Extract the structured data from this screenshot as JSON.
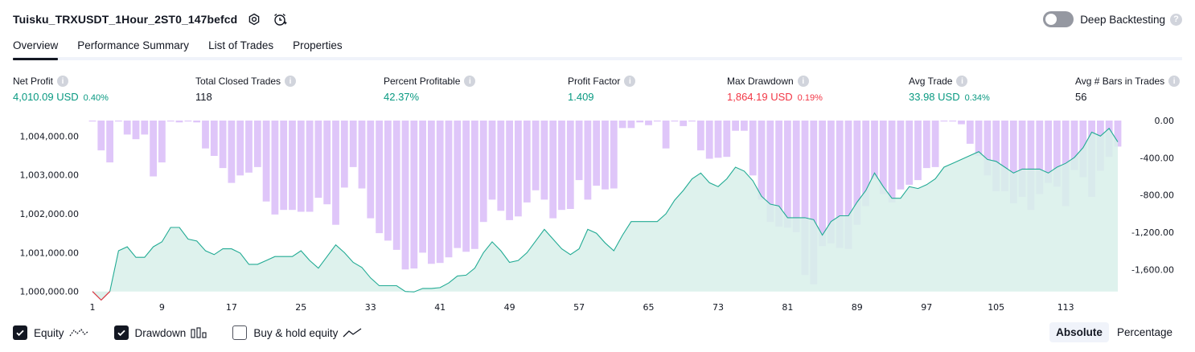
{
  "header": {
    "title": "Tuisku_TRXUSDT_1Hour_2ST0_147befcd"
  },
  "deep_backtesting": {
    "label": "Deep Backtesting",
    "enabled": false
  },
  "tabs": [
    {
      "label": "Overview",
      "active": true
    },
    {
      "label": "Performance Summary",
      "active": false
    },
    {
      "label": "List of Trades",
      "active": false
    },
    {
      "label": "Properties",
      "active": false
    }
  ],
  "metrics": {
    "net_profit": {
      "label": "Net Profit",
      "value": "4,010.09 USD",
      "pct": "0.40%"
    },
    "total_closed_trades": {
      "label": "Total Closed Trades",
      "value": "118"
    },
    "percent_profitable": {
      "label": "Percent Profitable",
      "value": "42.37%"
    },
    "profit_factor": {
      "label": "Profit Factor",
      "value": "1.409"
    },
    "max_drawdown": {
      "label": "Max Drawdown",
      "value": "1,864.19 USD",
      "pct": "0.19%"
    },
    "avg_trade": {
      "label": "Avg Trade",
      "value": "33.98 USD",
      "pct": "0.34%"
    },
    "avg_bars": {
      "label": "Avg # Bars in Trades",
      "value": "56"
    }
  },
  "legend": {
    "equity": {
      "label": "Equity",
      "checked": true
    },
    "drawdown": {
      "label": "Drawdown",
      "checked": true
    },
    "buy_hold": {
      "label": "Buy & hold equity",
      "checked": false
    }
  },
  "mode": {
    "absolute": "Absolute",
    "percentage": "Percentage",
    "selected": "Absolute"
  },
  "colors": {
    "equity_line": "#22ab94",
    "equity_fill": "#d8f0ea",
    "drawdown_bar": "#d7b8f7",
    "negative_line": "#f23645",
    "positive": "#089981",
    "negative": "#f23645"
  },
  "chart_data": {
    "type": "area",
    "x_ticks": [
      "1",
      "9",
      "17",
      "25",
      "33",
      "41",
      "49",
      "57",
      "65",
      "73",
      "81",
      "89",
      "97",
      "105",
      "113"
    ],
    "left_axis": {
      "ticks": [
        "1,004,000.00",
        "1,003,000.00",
        "1,002,000.00",
        "1,001,000.00",
        "1,000,000.00"
      ],
      "range": [
        999850,
        1004400
      ]
    },
    "right_axis": {
      "ticks": [
        "0.00",
        "-400.00",
        "-800.00",
        "-1,200.00",
        "-1,600.00"
      ],
      "range": [
        -1900,
        0
      ]
    },
    "series": [
      {
        "name": "Equity",
        "axis": "left",
        "x": [
          1,
          2,
          3,
          4,
          5,
          6,
          7,
          8,
          9,
          10,
          11,
          12,
          13,
          14,
          15,
          16,
          17,
          18,
          19,
          20,
          21,
          22,
          23,
          24,
          25,
          26,
          27,
          28,
          29,
          30,
          31,
          32,
          33,
          34,
          35,
          36,
          37,
          38,
          39,
          40,
          41,
          42,
          43,
          44,
          45,
          46,
          47,
          48,
          49,
          50,
          51,
          52,
          53,
          54,
          55,
          56,
          57,
          58,
          59,
          60,
          61,
          62,
          63,
          64,
          65,
          66,
          67,
          68,
          69,
          70,
          71,
          72,
          73,
          74,
          75,
          76,
          77,
          78,
          79,
          80,
          81,
          82,
          83,
          84,
          85,
          86,
          87,
          88,
          89,
          90,
          91,
          92,
          93,
          94,
          95,
          96,
          97,
          98,
          99,
          100,
          101,
          102,
          103,
          104,
          105,
          106,
          107,
          108,
          109,
          110,
          111,
          112,
          113,
          114,
          115,
          116,
          117,
          118,
          119
        ],
        "values": [
          1000000,
          999780,
          1000000,
          1001050,
          1001150,
          1000880,
          1000880,
          1001150,
          1001280,
          1001650,
          1001650,
          1001350,
          1001300,
          1001050,
          1000950,
          1001100,
          1001100,
          1000990,
          1000700,
          1000700,
          1000800,
          1000900,
          1000900,
          1000900,
          1001050,
          1000800,
          1000600,
          1000900,
          1001200,
          1001000,
          1000750,
          1000620,
          1000350,
          1000150,
          1000150,
          1000150,
          1000000,
          999990,
          1000080,
          1000080,
          1000100,
          1000220,
          1000400,
          1000420,
          1000600,
          1001000,
          1001280,
          1001050,
          1000750,
          1000800,
          1001000,
          1001300,
          1001600,
          1001350,
          1001100,
          1000950,
          1001100,
          1001600,
          1001500,
          1001250,
          1001050,
          1001450,
          1001800,
          1001800,
          1001800,
          1001800,
          1002000,
          1002350,
          1002600,
          1002900,
          1003050,
          1002800,
          1002700,
          1002900,
          1003200,
          1003100,
          1002850,
          1002450,
          1002250,
          1002200,
          1001900,
          1001900,
          1001900,
          1001850,
          1001450,
          1001800,
          1001950,
          1001950,
          1002300,
          1002600,
          1003050,
          1002700,
          1002400,
          1002400,
          1002700,
          1002650,
          1002750,
          1002900,
          1003200,
          1003300,
          1003400,
          1003500,
          1003600,
          1003400,
          1003350,
          1003200,
          1003050,
          1003150,
          1003150,
          1003150,
          1003050,
          1003200,
          1003300,
          1003450,
          1003700,
          1004100,
          1004000,
          1004200,
          1003850
        ]
      },
      {
        "name": "Drawdown",
        "axis": "right",
        "x": [
          1,
          2,
          3,
          4,
          5,
          6,
          7,
          8,
          9,
          10,
          11,
          12,
          13,
          14,
          15,
          16,
          17,
          18,
          19,
          20,
          21,
          22,
          23,
          24,
          25,
          26,
          27,
          28,
          29,
          30,
          31,
          32,
          33,
          34,
          35,
          36,
          37,
          38,
          39,
          40,
          41,
          42,
          43,
          44,
          45,
          46,
          47,
          48,
          49,
          50,
          51,
          52,
          53,
          54,
          55,
          56,
          57,
          58,
          59,
          60,
          61,
          62,
          63,
          64,
          65,
          66,
          67,
          68,
          69,
          70,
          71,
          72,
          73,
          74,
          75,
          76,
          77,
          78,
          79,
          80,
          81,
          82,
          83,
          84,
          85,
          86,
          87,
          88,
          89,
          90,
          91,
          92,
          93,
          94,
          95,
          96,
          97,
          98,
          99,
          100,
          101,
          102,
          103,
          104,
          105,
          106,
          107,
          108,
          109,
          110,
          111,
          112,
          113,
          114,
          115,
          116,
          117,
          118,
          119
        ],
        "values": [
          -10,
          -320,
          -450,
          -10,
          -150,
          -200,
          -150,
          -600,
          -450,
          -10,
          -20,
          -10,
          -20,
          -300,
          -380,
          -510,
          -670,
          -590,
          -560,
          -500,
          -870,
          -1010,
          -960,
          -960,
          -980,
          -980,
          -830,
          -900,
          -1120,
          -720,
          -500,
          -730,
          -1050,
          -1210,
          -1290,
          -1390,
          -1600,
          -1590,
          -1420,
          -1540,
          -1530,
          -1470,
          -1370,
          -1410,
          -1380,
          -1090,
          -850,
          -970,
          -1070,
          -1030,
          -880,
          -750,
          -850,
          -1050,
          -960,
          -950,
          -640,
          -850,
          -700,
          -740,
          -730,
          -80,
          -80,
          -20,
          -50,
          -10,
          -300,
          -10,
          -60,
          -10,
          -320,
          -410,
          -400,
          -390,
          -110,
          -110,
          -590,
          -850,
          -1090,
          -1140,
          -1150,
          -1200,
          -1660,
          -1760,
          -1350,
          -1320,
          -1370,
          -1380,
          -1120,
          -920,
          -630,
          -790,
          -880,
          -740,
          -690,
          -640,
          -510,
          -500,
          -10,
          -10,
          -40,
          -250,
          -380,
          -590,
          -760,
          -760,
          -890,
          -820,
          -960,
          -790,
          -670,
          -710,
          -920,
          -530,
          -610,
          -820,
          -540,
          -390,
          -280
        ]
      }
    ]
  }
}
